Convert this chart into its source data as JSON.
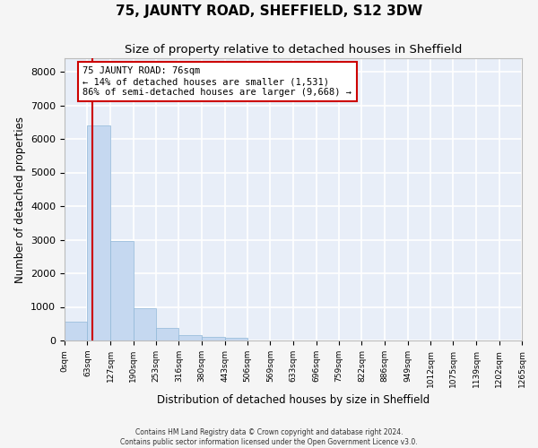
{
  "title": "75, JAUNTY ROAD, SHEFFIELD, S12 3DW",
  "subtitle": "Size of property relative to detached houses in Sheffield",
  "xlabel": "Distribution of detached houses by size in Sheffield",
  "ylabel": "Number of detached properties",
  "footer_line1": "Contains HM Land Registry data © Crown copyright and database right 2024.",
  "footer_line2": "Contains public sector information licensed under the Open Government Licence v3.0.",
  "bin_edges": [
    0,
    63,
    127,
    190,
    253,
    316,
    380,
    443,
    506,
    569,
    633,
    696,
    759,
    822,
    886,
    949,
    1012,
    1075,
    1139,
    1202,
    1265
  ],
  "bar_heights": [
    550,
    6400,
    2950,
    960,
    370,
    170,
    100,
    80,
    0,
    0,
    0,
    0,
    0,
    0,
    0,
    0,
    0,
    0,
    0,
    0
  ],
  "bar_color": "#c5d8f0",
  "bar_edgecolor": "#90b8d8",
  "property_size": 76,
  "vline_color": "#cc0000",
  "annotation_text": "75 JAUNTY ROAD: 76sqm\n← 14% of detached houses are smaller (1,531)\n86% of semi-detached houses are larger (9,668) →",
  "annotation_box_edgecolor": "#cc0000",
  "ylim": [
    0,
    8400
  ],
  "yticks": [
    0,
    1000,
    2000,
    3000,
    4000,
    5000,
    6000,
    7000,
    8000
  ],
  "background_color": "#e8eef8",
  "fig_background_color": "#f5f5f5",
  "grid_color": "#ffffff",
  "title_fontsize": 11,
  "subtitle_fontsize": 9.5,
  "tick_label_fontsize": 6.5,
  "ylabel_fontsize": 8.5,
  "xlabel_fontsize": 8.5,
  "annotation_fontsize": 7.5
}
